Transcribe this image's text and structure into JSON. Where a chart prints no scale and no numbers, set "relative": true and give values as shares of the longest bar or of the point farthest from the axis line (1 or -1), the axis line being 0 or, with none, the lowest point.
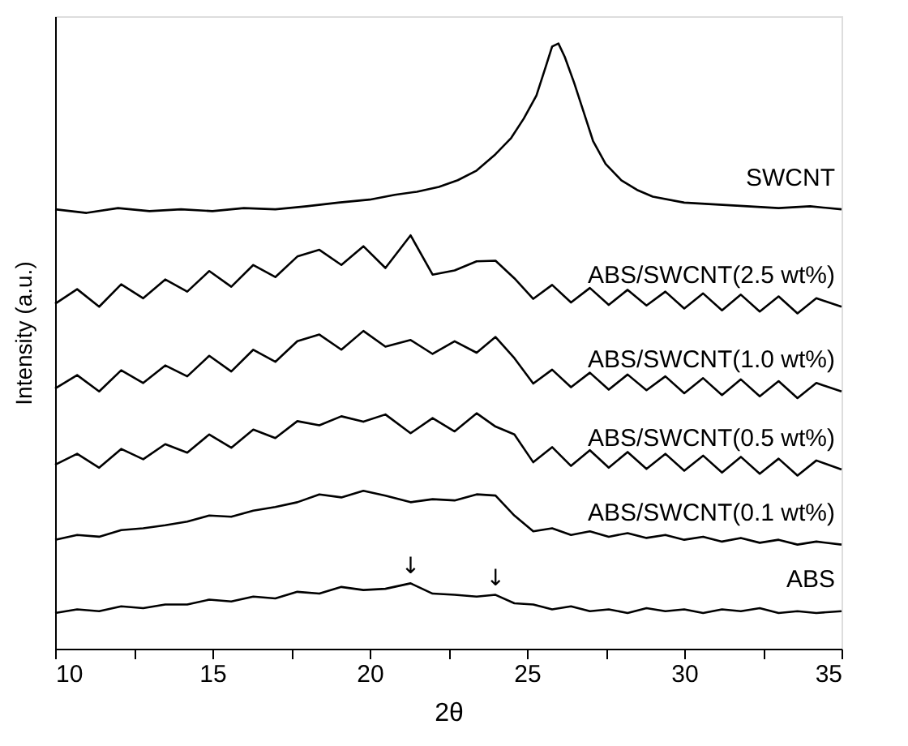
{
  "chart_data": {
    "type": "line",
    "relative": true,
    "xlabel": "2θ",
    "ylabel": "Intensity (a.u.)",
    "xlim": [
      10,
      35
    ],
    "xticks": [
      10,
      {
        "value": 12.5,
        "label": null
      },
      15,
      {
        "value": 17.5,
        "label": null
      },
      20,
      {
        "value": 22.5,
        "label": null
      },
      25,
      {
        "value": 27.5,
        "label": null
      },
      30,
      {
        "value": 32.5,
        "label": null
      },
      35
    ],
    "grid": false,
    "legend": false,
    "marker": "none",
    "line_style": "solid",
    "x": [
      10,
      10.7,
      11.4,
      12.1,
      12.8,
      13.5,
      14.2,
      14.9,
      15.6,
      16.3,
      17,
      17.7,
      18.4,
      19.1,
      19.8,
      20.5,
      21.3,
      22,
      22.7,
      23.4,
      24,
      24.6,
      25.2,
      25.8,
      26.4,
      27,
      27.6,
      28.2,
      28.8,
      29.4,
      30,
      30.6,
      31.2,
      31.8,
      32.4,
      33,
      33.6,
      34.2,
      35
    ],
    "series": [
      {
        "name": "ABS",
        "color": "#000000",
        "values": [
          0.059,
          0.065,
          0.062,
          0.07,
          0.067,
          0.073,
          0.073,
          0.081,
          0.078,
          0.086,
          0.083,
          0.094,
          0.091,
          0.102,
          0.097,
          0.099,
          0.108,
          0.091,
          0.089,
          0.086,
          0.089,
          0.075,
          0.073,
          0.065,
          0.07,
          0.062,
          0.065,
          0.059,
          0.067,
          0.062,
          0.065,
          0.059,
          0.065,
          0.062,
          0.067,
          0.059,
          0.062,
          0.059,
          0.062
        ]
      },
      {
        "name": "ABS/SWCNT(0.1 wt%)",
        "color": "#000000",
        "values": [
          0.18,
          0.188,
          0.185,
          0.196,
          0.199,
          0.204,
          0.21,
          0.22,
          0.218,
          0.228,
          0.234,
          0.242,
          0.255,
          0.25,
          0.261,
          0.253,
          0.242,
          0.247,
          0.245,
          0.255,
          0.253,
          0.22,
          0.194,
          0.199,
          0.188,
          0.194,
          0.185,
          0.191,
          0.183,
          0.188,
          0.18,
          0.185,
          0.177,
          0.183,
          0.175,
          0.18,
          0.172,
          0.177,
          0.172
        ]
      },
      {
        "name": "ABS/SWCNT(0.5 wt%)",
        "color": "#000000",
        "values": [
          0.304,
          0.322,
          0.299,
          0.33,
          0.313,
          0.338,
          0.324,
          0.354,
          0.332,
          0.362,
          0.348,
          0.376,
          0.369,
          0.384,
          0.375,
          0.387,
          0.356,
          0.381,
          0.359,
          0.389,
          0.367,
          0.354,
          0.308,
          0.333,
          0.302,
          0.328,
          0.299,
          0.325,
          0.297,
          0.322,
          0.294,
          0.319,
          0.291,
          0.317,
          0.289,
          0.314,
          0.286,
          0.311,
          0.296
        ]
      },
      {
        "name": "ABS/SWCNT(1.0 wt%)",
        "color": "#000000",
        "values": [
          0.43,
          0.452,
          0.425,
          0.46,
          0.439,
          0.468,
          0.45,
          0.484,
          0.458,
          0.494,
          0.474,
          0.508,
          0.519,
          0.494,
          0.525,
          0.499,
          0.51,
          0.487,
          0.508,
          0.489,
          0.515,
          0.48,
          0.438,
          0.461,
          0.432,
          0.456,
          0.428,
          0.453,
          0.427,
          0.45,
          0.422,
          0.447,
          0.419,
          0.445,
          0.417,
          0.442,
          0.414,
          0.439,
          0.425
        ]
      },
      {
        "name": "ABS/SWCNT(2.5 wt%)",
        "color": "#000000",
        "values": [
          0.57,
          0.594,
          0.565,
          0.602,
          0.579,
          0.61,
          0.59,
          0.624,
          0.598,
          0.634,
          0.614,
          0.648,
          0.659,
          0.634,
          0.665,
          0.629,
          0.683,
          0.618,
          0.625,
          0.64,
          0.641,
          0.612,
          0.578,
          0.601,
          0.572,
          0.596,
          0.568,
          0.593,
          0.567,
          0.59,
          0.562,
          0.587,
          0.559,
          0.585,
          0.557,
          0.582,
          0.554,
          0.579,
          0.565
        ]
      },
      {
        "name": "SWCNT",
        "color": "#000000",
        "x": [
          10,
          11,
          12,
          13,
          14,
          15,
          16,
          17,
          18,
          19,
          20,
          20.8,
          21.5,
          22.2,
          22.8,
          23.4,
          24,
          24.5,
          24.9,
          25.3,
          25.6,
          25.8,
          26,
          26.2,
          26.5,
          26.8,
          27.1,
          27.5,
          28,
          28.5,
          29,
          30,
          31,
          32,
          33,
          34,
          35
        ],
        "values": [
          0.726,
          0.72,
          0.728,
          0.723,
          0.726,
          0.723,
          0.728,
          0.726,
          0.731,
          0.737,
          0.742,
          0.75,
          0.755,
          0.763,
          0.774,
          0.79,
          0.817,
          0.844,
          0.876,
          0.914,
          0.962,
          0.995,
          1.0,
          0.978,
          0.935,
          0.887,
          0.839,
          0.801,
          0.774,
          0.758,
          0.747,
          0.737,
          0.734,
          0.731,
          0.728,
          0.731,
          0.726
        ]
      }
    ],
    "annotations": [
      {
        "text": "↓",
        "x": 21.3,
        "y": 0.108
      },
      {
        "text": "↓",
        "x": 24,
        "y": 0.089
      }
    ]
  }
}
